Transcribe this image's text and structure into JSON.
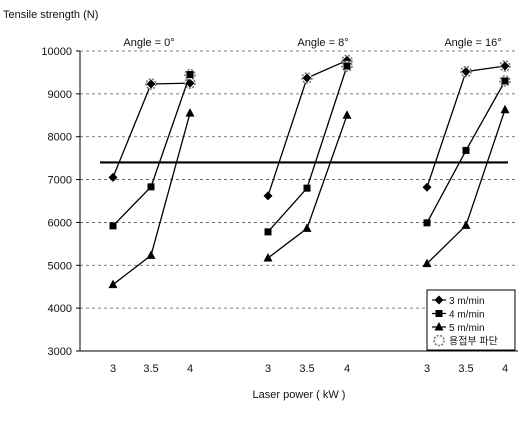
{
  "chart_data": {
    "type": "line",
    "title": "",
    "ylabel": "Tensile strength (N)",
    "xlabel": "Laser power ( kW )",
    "ylim": [
      3000,
      10000
    ],
    "yticks": [
      3000,
      4000,
      5000,
      6000,
      7000,
      8000,
      9000,
      10000
    ],
    "grid": "horizontal dashed",
    "legend_position": "bottom-right",
    "reference_line": {
      "y": 7400
    },
    "panels": [
      {
        "label": "Angle = 0°",
        "x": [
          "3",
          "3.5",
          "4"
        ],
        "series": [
          {
            "name": "3 m/min",
            "marker": "diamond",
            "values": [
              7050,
              9230,
              9250
            ],
            "fracture_at_weld": [
              false,
              true,
              true
            ]
          },
          {
            "name": "4 m/min",
            "marker": "square",
            "values": [
              5920,
              6830,
              9450
            ],
            "fracture_at_weld": [
              false,
              false,
              true
            ]
          },
          {
            "name": "5 m/min",
            "marker": "triangle",
            "values": [
              4550,
              5230,
              8550
            ],
            "fracture_at_weld": [
              false,
              false,
              false
            ]
          }
        ]
      },
      {
        "label": "Angle = 8°",
        "x": [
          "3",
          "3.5",
          "4"
        ],
        "series": [
          {
            "name": "3 m/min",
            "marker": "diamond",
            "values": [
              6620,
              9370,
              9780
            ],
            "fracture_at_weld": [
              false,
              true,
              true
            ]
          },
          {
            "name": "4 m/min",
            "marker": "square",
            "values": [
              5780,
              6800,
              9650
            ],
            "fracture_at_weld": [
              false,
              false,
              true
            ]
          },
          {
            "name": "5 m/min",
            "marker": "triangle",
            "values": [
              5170,
              5860,
              8500
            ],
            "fracture_at_weld": [
              false,
              false,
              false
            ]
          }
        ]
      },
      {
        "label": "Angle = 16°",
        "x": [
          "3",
          "3.5",
          "4"
        ],
        "series": [
          {
            "name": "3 m/min",
            "marker": "diamond",
            "values": [
              6820,
              9520,
              9650
            ],
            "fracture_at_weld": [
              false,
              true,
              true
            ]
          },
          {
            "name": "4 m/min",
            "marker": "square",
            "values": [
              5990,
              7680,
              9300
            ],
            "fracture_at_weld": [
              false,
              false,
              true
            ]
          },
          {
            "name": "5 m/min",
            "marker": "triangle",
            "values": [
              5040,
              5930,
              8630
            ],
            "fracture_at_weld": [
              false,
              false,
              false
            ]
          }
        ]
      }
    ],
    "legend": [
      {
        "label": "3 m/min",
        "marker": "diamond"
      },
      {
        "label": "4 m/min",
        "marker": "square"
      },
      {
        "label": "5 m/min",
        "marker": "triangle"
      },
      {
        "label": "용접부 파단",
        "marker": "hollow-circle"
      }
    ]
  }
}
